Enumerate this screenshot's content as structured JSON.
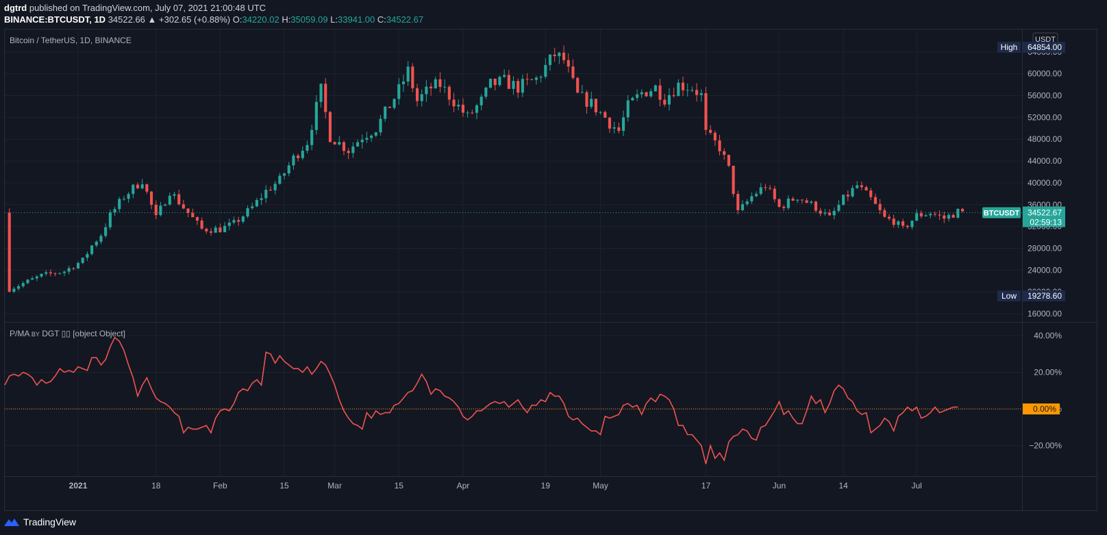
{
  "header": {
    "user": "dgtrd",
    "published": "published on TradingView.com, July 07, 2021 21:00:48 UTC",
    "symbol": "BINANCE:BTCUSDT, 1D",
    "last": "34522.66",
    "change": "▲ +302.65 (+0.88%)",
    "open_label": "O:",
    "open": "34220.02",
    "high_label": "H:",
    "high": "35059.09",
    "low_label": "L:",
    "low": "33941.00",
    "close_label": "C:",
    "close": "34522.67"
  },
  "footer": {
    "brand": "TradingView",
    "logo_icon": "tradingview-logo-icon"
  },
  "colors": {
    "bg": "#131722",
    "grid": "#1e222d",
    "up": "#26a69a",
    "down": "#ef5350",
    "text": "#b2b5be",
    "zero": "#ff9800",
    "badge": "#1e2a4a"
  },
  "chart_data": [
    {
      "type": "candlestick",
      "title": "Bitcoin / TetherUS, 1D, BINANCE",
      "currency": "USDT",
      "ylim": [
        16000,
        68000
      ],
      "y_ticks": [
        16000,
        20000,
        24000,
        28000,
        32000,
        36000,
        40000,
        44000,
        48000,
        52000,
        56000,
        60000,
        64000
      ],
      "y_tick_labels": [
        "16000.00",
        "20000.00",
        "24000.00",
        "28000.00",
        "32000.00",
        "36000.00",
        "40000.00",
        "44000.00",
        "48000.00",
        "52000.00",
        "56000.00",
        "60000.00",
        "64000.00"
      ],
      "x_ticks": [
        "2021",
        "18",
        "Feb",
        "15",
        "Mar",
        "15",
        "Apr",
        "19",
        "May",
        "17",
        "Jun",
        "14",
        "Jul"
      ],
      "x_tick_days": [
        8,
        25,
        39,
        53,
        64,
        78,
        92,
        110,
        122,
        145,
        161,
        175,
        191
      ],
      "x_range_days": [
        -8,
        214
      ],
      "high_marker": {
        "label": "High",
        "value": "64854.00",
        "y": 64854
      },
      "low_marker": {
        "label": "Low",
        "value": "19278.60",
        "y": 19278.6
      },
      "last_marker": {
        "label": "BTCUSDT",
        "value": "34522.67",
        "countdown": "02:59:13",
        "y": 34522.67
      },
      "anchors": [
        [
          -7,
          20500
        ],
        [
          0,
          23000
        ],
        [
          5,
          23800
        ],
        [
          9,
          25800
        ],
        [
          11,
          28500
        ],
        [
          13,
          30500
        ],
        [
          15,
          34000
        ],
        [
          18,
          37500
        ],
        [
          22,
          40500
        ],
        [
          25,
          33500
        ],
        [
          28,
          38500
        ],
        [
          31,
          35500
        ],
        [
          35,
          31500
        ],
        [
          39,
          31500
        ],
        [
          42,
          32500
        ],
        [
          46,
          35500
        ],
        [
          49,
          38500
        ],
        [
          52,
          40500
        ],
        [
          55,
          44500
        ],
        [
          58,
          47500
        ],
        [
          61,
          57000
        ],
        [
          63,
          48500
        ],
        [
          67,
          46000
        ],
        [
          70,
          48500
        ],
        [
          73,
          50000
        ],
        [
          78,
          57000
        ],
        [
          80,
          60500
        ],
        [
          82,
          55000
        ],
        [
          85,
          57500
        ],
        [
          87,
          58000
        ],
        [
          91,
          54000
        ],
        [
          93,
          52000
        ],
        [
          96,
          55000
        ],
        [
          98,
          58000
        ],
        [
          101,
          58600
        ],
        [
          104,
          57500
        ],
        [
          108,
          59000
        ],
        [
          112,
          63500
        ],
        [
          114,
          62500
        ],
        [
          117,
          56000
        ],
        [
          120,
          54500
        ],
        [
          123,
          52000
        ],
        [
          124,
          51000
        ],
        [
          126,
          49500
        ],
        [
          128,
          54000
        ],
        [
          131,
          56500
        ],
        [
          134,
          57500
        ],
        [
          136,
          55500
        ],
        [
          139,
          58000
        ],
        [
          142,
          57500
        ],
        [
          144,
          56000
        ],
        [
          145,
          49000
        ],
        [
          148,
          46500
        ],
        [
          150,
          42500
        ],
        [
          152,
          34500
        ],
        [
          155,
          37500
        ],
        [
          158,
          39500
        ],
        [
          161,
          35500
        ],
        [
          165,
          37500
        ],
        [
          167,
          36500
        ],
        [
          169,
          35500
        ],
        [
          172,
          33500
        ],
        [
          175,
          37000
        ],
        [
          178,
          39500
        ],
        [
          181,
          37000
        ],
        [
          184,
          33500
        ],
        [
          186,
          33000
        ],
        [
          188,
          31500
        ],
        [
          191,
          34000
        ],
        [
          194,
          34500
        ],
        [
          197,
          33500
        ],
        [
          200,
          34700
        ],
        [
          201,
          34522
        ]
      ],
      "series_name": "Bitcoin / TetherUS"
    },
    {
      "type": "line",
      "title": "P/MA",
      "title_by": "BY",
      "title_author": "DGT",
      "title_icons": "▯▯",
      "title_extra": "[object Object]",
      "ylim": [
        -35,
        48
      ],
      "y_ticks": [
        -20,
        0,
        20,
        40
      ],
      "y_tick_labels": [
        "−20.00%",
        "0.00%",
        "20.00%",
        "40.00%"
      ],
      "last_marker": {
        "value": "0.00%",
        "y": 0
      },
      "points": [
        [
          -8,
          13
        ],
        [
          -7,
          18
        ],
        [
          -6,
          19
        ],
        [
          -5,
          18
        ],
        [
          -4,
          20
        ],
        [
          -3,
          19
        ],
        [
          -2,
          17
        ],
        [
          -1,
          13
        ],
        [
          0,
          16
        ],
        [
          1,
          14
        ],
        [
          2,
          15
        ],
        [
          3,
          18
        ],
        [
          4,
          22
        ],
        [
          5,
          20
        ],
        [
          6,
          21
        ],
        [
          7,
          20
        ],
        [
          8,
          23
        ],
        [
          9,
          22
        ],
        [
          10,
          21
        ],
        [
          11,
          28
        ],
        [
          12,
          28
        ],
        [
          13,
          24
        ],
        [
          14,
          27
        ],
        [
          15,
          34
        ],
        [
          16,
          39
        ],
        [
          17,
          37
        ],
        [
          18,
          32
        ],
        [
          19,
          24
        ],
        [
          20,
          17
        ],
        [
          21,
          7
        ],
        [
          22,
          13
        ],
        [
          23,
          17
        ],
        [
          24,
          11
        ],
        [
          25,
          6
        ],
        [
          26,
          4
        ],
        [
          27,
          3
        ],
        [
          28,
          1
        ],
        [
          29,
          -2
        ],
        [
          30,
          -4
        ],
        [
          31,
          -13
        ],
        [
          32,
          -10
        ],
        [
          33,
          -11
        ],
        [
          34,
          -11
        ],
        [
          35,
          -10
        ],
        [
          36,
          -9
        ],
        [
          37,
          -13
        ],
        [
          38,
          -5
        ],
        [
          39,
          -1
        ],
        [
          40,
          0
        ],
        [
          41,
          -1
        ],
        [
          42,
          3
        ],
        [
          43,
          9
        ],
        [
          44,
          11
        ],
        [
          45,
          10
        ],
        [
          46,
          14
        ],
        [
          47,
          16
        ],
        [
          48,
          13
        ],
        [
          49,
          31
        ],
        [
          50,
          30
        ],
        [
          51,
          25
        ],
        [
          52,
          29
        ],
        [
          53,
          26
        ],
        [
          54,
          24
        ],
        [
          55,
          22
        ],
        [
          56,
          22
        ],
        [
          57,
          20
        ],
        [
          58,
          23
        ],
        [
          59,
          19
        ],
        [
          60,
          22
        ],
        [
          61,
          26
        ],
        [
          62,
          24
        ],
        [
          63,
          19
        ],
        [
          64,
          13
        ],
        [
          65,
          5
        ],
        [
          66,
          -1
        ],
        [
          67,
          -5
        ],
        [
          68,
          -8
        ],
        [
          69,
          -9
        ],
        [
          70,
          -11
        ],
        [
          71,
          -2
        ],
        [
          72,
          -5
        ],
        [
          73,
          -1
        ],
        [
          74,
          -3
        ],
        [
          75,
          -2
        ],
        [
          76,
          -2
        ],
        [
          77,
          2
        ],
        [
          78,
          3
        ],
        [
          79,
          6
        ],
        [
          80,
          9
        ],
        [
          81,
          10
        ],
        [
          82,
          14
        ],
        [
          83,
          19
        ],
        [
          84,
          15
        ],
        [
          85,
          8
        ],
        [
          86,
          11
        ],
        [
          87,
          10
        ],
        [
          88,
          7
        ],
        [
          89,
          6
        ],
        [
          90,
          4
        ],
        [
          91,
          1
        ],
        [
          92,
          -4
        ],
        [
          93,
          -6
        ],
        [
          94,
          -4
        ],
        [
          95,
          -1
        ],
        [
          96,
          -1
        ],
        [
          97,
          1
        ],
        [
          98,
          3
        ],
        [
          99,
          4
        ],
        [
          100,
          3
        ],
        [
          101,
          4
        ],
        [
          102,
          1
        ],
        [
          103,
          3
        ],
        [
          104,
          5
        ],
        [
          105,
          1
        ],
        [
          106,
          -2
        ],
        [
          107,
          2
        ],
        [
          108,
          2
        ],
        [
          109,
          5
        ],
        [
          110,
          4
        ],
        [
          111,
          9
        ],
        [
          112,
          7
        ],
        [
          113,
          7
        ],
        [
          114,
          3
        ],
        [
          115,
          -4
        ],
        [
          116,
          -6
        ],
        [
          117,
          -5
        ],
        [
          118,
          -8
        ],
        [
          119,
          -10
        ],
        [
          120,
          -12
        ],
        [
          121,
          -12
        ],
        [
          122,
          -14
        ],
        [
          123,
          -4
        ],
        [
          124,
          -5
        ],
        [
          125,
          -4
        ],
        [
          126,
          -3
        ],
        [
          127,
          2
        ],
        [
          128,
          3
        ],
        [
          129,
          1
        ],
        [
          130,
          2
        ],
        [
          131,
          -3
        ],
        [
          132,
          3
        ],
        [
          133,
          6
        ],
        [
          134,
          4
        ],
        [
          135,
          8
        ],
        [
          136,
          7
        ],
        [
          137,
          5
        ],
        [
          138,
          0
        ],
        [
          139,
          -9
        ],
        [
          140,
          -9
        ],
        [
          141,
          -14
        ],
        [
          142,
          -14
        ],
        [
          143,
          -17
        ],
        [
          144,
          -20
        ],
        [
          145,
          -30
        ],
        [
          146,
          -20
        ],
        [
          147,
          -27
        ],
        [
          148,
          -24
        ],
        [
          149,
          -28
        ],
        [
          150,
          -18
        ],
        [
          151,
          -15
        ],
        [
          152,
          -14
        ],
        [
          153,
          -11
        ],
        [
          154,
          -12
        ],
        [
          155,
          -16
        ],
        [
          156,
          -17
        ],
        [
          157,
          -10
        ],
        [
          158,
          -9
        ],
        [
          159,
          -5
        ],
        [
          160,
          -1
        ],
        [
          161,
          4
        ],
        [
          162,
          -3
        ],
        [
          163,
          -1
        ],
        [
          164,
          -5
        ],
        [
          165,
          -8
        ],
        [
          166,
          -8
        ],
        [
          167,
          -1
        ],
        [
          168,
          7
        ],
        [
          169,
          3
        ],
        [
          170,
          5
        ],
        [
          171,
          -2
        ],
        [
          172,
          3
        ],
        [
          173,
          10
        ],
        [
          174,
          13
        ],
        [
          175,
          11
        ],
        [
          176,
          6
        ],
        [
          177,
          4
        ],
        [
          178,
          -1
        ],
        [
          179,
          -3
        ],
        [
          180,
          -2
        ],
        [
          181,
          -13
        ],
        [
          182,
          -11
        ],
        [
          183,
          -9
        ],
        [
          184,
          -5
        ],
        [
          185,
          -7
        ],
        [
          186,
          -12
        ],
        [
          187,
          -4
        ],
        [
          188,
          -2
        ],
        [
          189,
          1
        ],
        [
          190,
          -1
        ],
        [
          191,
          1
        ],
        [
          192,
          -5
        ],
        [
          193,
          -4
        ],
        [
          194,
          -2
        ],
        [
          195,
          1
        ],
        [
          196,
          -2
        ],
        [
          197,
          -1
        ],
        [
          198,
          0
        ],
        [
          199,
          1
        ],
        [
          200,
          1
        ]
      ],
      "series_name": "P/MA"
    }
  ]
}
